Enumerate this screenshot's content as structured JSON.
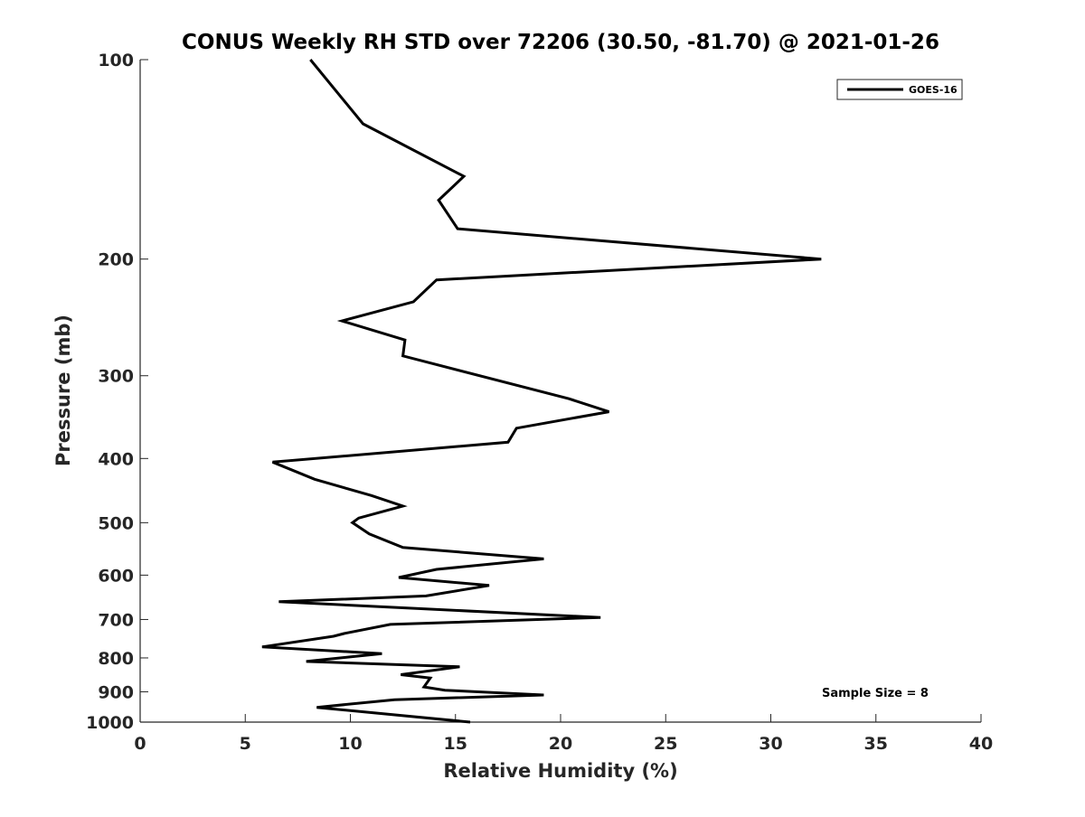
{
  "chart_data": {
    "type": "line",
    "title": "CONUS Weekly RH STD over 72206 (30.50, -81.70) @ 2021-01-26",
    "xlabel": "Relative Humidity (%)",
    "ylabel": "Pressure (mb)",
    "xlim": [
      0,
      40
    ],
    "ylim": [
      100,
      1000
    ],
    "y_scale": "log",
    "y_inverted": true,
    "grid": false,
    "legend_position": "top-right",
    "x_ticks": [
      0,
      5,
      10,
      15,
      20,
      25,
      30,
      35,
      40
    ],
    "x_tick_labels": [
      "0",
      "5",
      "10",
      "15",
      "20",
      "25",
      "30",
      "35",
      "40"
    ],
    "y_ticks": [
      100,
      200,
      300,
      400,
      500,
      600,
      700,
      800,
      900,
      1000
    ],
    "y_tick_labels": [
      "100",
      "200",
      "300",
      "400",
      "500",
      "600",
      "700",
      "800",
      "900",
      "1000"
    ],
    "series": [
      {
        "name": "GOES-16",
        "color": "#000000",
        "points": [
          [
            8.1,
            100
          ],
          [
            10.6,
            125
          ],
          [
            15.4,
            150
          ],
          [
            14.2,
            163
          ],
          [
            15.1,
            180
          ],
          [
            32.4,
            200
          ],
          [
            14.1,
            215
          ],
          [
            13.0,
            232
          ],
          [
            9.6,
            248
          ],
          [
            12.6,
            265
          ],
          [
            12.5,
            280
          ],
          [
            20.4,
            325
          ],
          [
            22.3,
            340
          ],
          [
            17.9,
            360
          ],
          [
            17.5,
            378
          ],
          [
            6.3,
            405
          ],
          [
            8.3,
            430
          ],
          [
            11.0,
            455
          ],
          [
            12.5,
            472
          ],
          [
            10.4,
            492
          ],
          [
            10.1,
            500
          ],
          [
            10.9,
            520
          ],
          [
            12.5,
            545
          ],
          [
            19.2,
            567
          ],
          [
            14.1,
            588
          ],
          [
            12.3,
            605
          ],
          [
            16.6,
            622
          ],
          [
            13.6,
            645
          ],
          [
            6.6,
            658
          ],
          [
            21.9,
            695
          ],
          [
            11.9,
            712
          ],
          [
            9.7,
            735
          ],
          [
            9.2,
            742
          ],
          [
            5.8,
            770
          ],
          [
            11.5,
            788
          ],
          [
            7.9,
            810
          ],
          [
            15.2,
            825
          ],
          [
            12.4,
            848
          ],
          [
            13.8,
            858
          ],
          [
            13.5,
            885
          ],
          [
            14.5,
            895
          ],
          [
            19.2,
            910
          ],
          [
            12.1,
            925
          ],
          [
            8.4,
            950
          ],
          [
            15.7,
            1000
          ]
        ]
      }
    ],
    "annotations": [
      {
        "text": "Sample Size = 8",
        "x": 35,
        "y": 900
      }
    ]
  }
}
